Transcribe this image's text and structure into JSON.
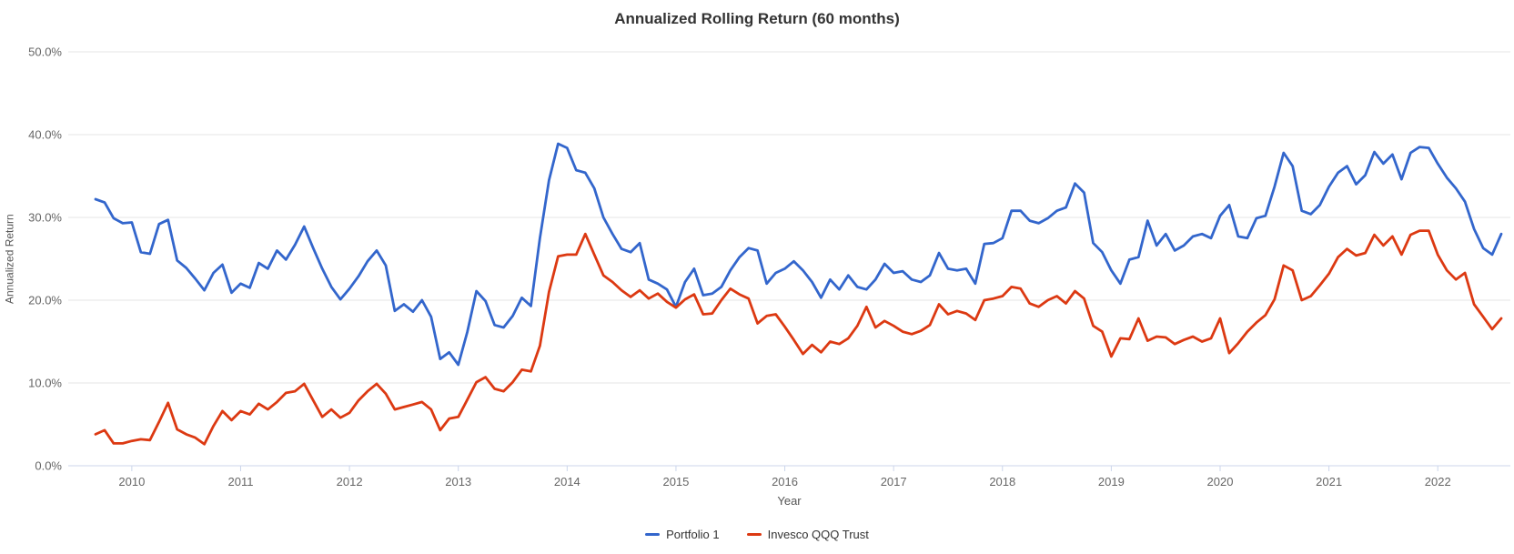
{
  "chart": {
    "title": "Annualized Rolling Return (60 months)",
    "y_axis_title": "Annualized Return",
    "x_axis_title": "Year"
  },
  "chart_data": {
    "type": "line",
    "title": "Annualized Rolling Return (60 months)",
    "xlabel": "Year",
    "ylabel": "Annualized Return",
    "frequency": "monthly",
    "x_start_month": "2009-09",
    "x_end_month": "2022-08",
    "ylim": [
      0,
      50
    ],
    "y_ticks": [
      0,
      10,
      20,
      30,
      40,
      50
    ],
    "y_tick_labels": [
      "0.0%",
      "10.0%",
      "20.0%",
      "30.0%",
      "40.0%",
      "50.0%"
    ],
    "x_tick_years": [
      2010,
      2011,
      2012,
      2013,
      2014,
      2015,
      2016,
      2017,
      2018,
      2019,
      2020,
      2021,
      2022
    ],
    "grid": "horizontal",
    "legend_position": "bottom",
    "colors": {
      "grid_line": "#e6e6e6",
      "axis_line": "#ccd6eb",
      "tick_label": "#666666",
      "title": "#333333"
    },
    "series": [
      {
        "name": "Portfolio 1",
        "color": "#3366cc",
        "values": [
          32.2,
          31.8,
          29.9,
          29.3,
          29.4,
          25.8,
          25.6,
          29.2,
          29.7,
          24.8,
          23.9,
          22.6,
          21.2,
          23.3,
          24.3,
          20.9,
          22.0,
          21.5,
          24.5,
          23.8,
          26.0,
          24.9,
          26.7,
          28.9,
          26.3,
          23.8,
          21.6,
          20.1,
          21.4,
          22.9,
          24.7,
          26.0,
          24.2,
          18.7,
          19.5,
          18.6,
          20.0,
          18.0,
          12.9,
          13.7,
          12.2,
          16.2,
          21.1,
          19.9,
          17.0,
          16.7,
          18.1,
          20.3,
          19.3,
          27.5,
          34.5,
          38.9,
          38.4,
          35.7,
          35.4,
          33.5,
          30.0,
          28.0,
          26.2,
          25.8,
          26.9,
          22.5,
          22.0,
          21.3,
          19.2,
          22.2,
          23.8,
          20.6,
          20.8,
          21.6,
          23.6,
          25.2,
          26.3,
          26.0,
          22.0,
          23.3,
          23.8,
          24.7,
          23.6,
          22.2,
          20.3,
          22.5,
          21.3,
          23.0,
          21.6,
          21.3,
          22.5,
          24.4,
          23.3,
          23.5,
          22.5,
          22.2,
          23.0,
          25.7,
          23.8,
          23.6,
          23.8,
          22.0,
          26.8,
          26.9,
          27.5,
          30.8,
          30.8,
          29.6,
          29.3,
          29.9,
          30.8,
          31.2,
          34.1,
          33.0,
          26.9,
          25.8,
          23.6,
          22.0,
          24.9,
          25.2,
          29.6,
          26.6,
          28.0,
          26.0,
          26.6,
          27.7,
          28.0,
          27.5,
          30.2,
          31.5,
          27.7,
          27.5,
          29.9,
          30.2,
          33.7,
          37.8,
          36.2,
          30.8,
          30.4,
          31.5,
          33.7,
          35.4,
          36.2,
          34.0,
          35.1,
          37.9,
          36.5,
          37.6,
          34.6,
          37.8,
          38.5,
          38.4,
          36.5,
          34.8,
          33.5,
          31.9,
          28.6,
          26.3,
          25.5,
          28.0
        ]
      },
      {
        "name": "Invesco QQQ Trust",
        "color": "#dc3912",
        "values": [
          3.8,
          4.3,
          2.7,
          2.7,
          3.0,
          3.2,
          3.1,
          5.3,
          7.6,
          4.4,
          3.8,
          3.4,
          2.6,
          4.8,
          6.6,
          5.5,
          6.6,
          6.2,
          7.5,
          6.8,
          7.7,
          8.8,
          9.0,
          9.9,
          7.9,
          5.9,
          6.8,
          5.8,
          6.4,
          7.9,
          9.0,
          9.9,
          8.7,
          6.8,
          7.1,
          7.4,
          7.7,
          6.8,
          4.3,
          5.7,
          5.9,
          8.0,
          10.1,
          10.7,
          9.3,
          9.0,
          10.1,
          11.6,
          11.4,
          14.5,
          21.0,
          25.3,
          25.5,
          25.5,
          28.0,
          25.5,
          23.0,
          22.2,
          21.2,
          20.4,
          21.2,
          20.2,
          20.8,
          19.8,
          19.1,
          20.1,
          20.7,
          18.3,
          18.4,
          20.0,
          21.4,
          20.7,
          20.2,
          17.2,
          18.1,
          18.3,
          16.8,
          15.2,
          13.5,
          14.6,
          13.7,
          15.0,
          14.7,
          15.4,
          16.9,
          19.2,
          16.7,
          17.5,
          16.9,
          16.2,
          15.9,
          16.3,
          17.0,
          19.5,
          18.3,
          18.7,
          18.4,
          17.6,
          20.0,
          20.2,
          20.5,
          21.6,
          21.4,
          19.6,
          19.2,
          20.0,
          20.5,
          19.6,
          21.1,
          20.2,
          16.9,
          16.2,
          13.2,
          15.4,
          15.3,
          17.8,
          15.1,
          15.6,
          15.5,
          14.7,
          15.2,
          15.6,
          15.0,
          15.4,
          17.8,
          13.6,
          14.8,
          16.2,
          17.3,
          18.2,
          20.1,
          24.2,
          23.6,
          20.0,
          20.5,
          21.8,
          23.2,
          25.2,
          26.2,
          25.4,
          25.7,
          27.9,
          26.6,
          27.7,
          25.5,
          27.9,
          28.4,
          28.4,
          25.5,
          23.6,
          22.5,
          23.3,
          19.5,
          18.0,
          16.5,
          17.8
        ]
      }
    ]
  }
}
